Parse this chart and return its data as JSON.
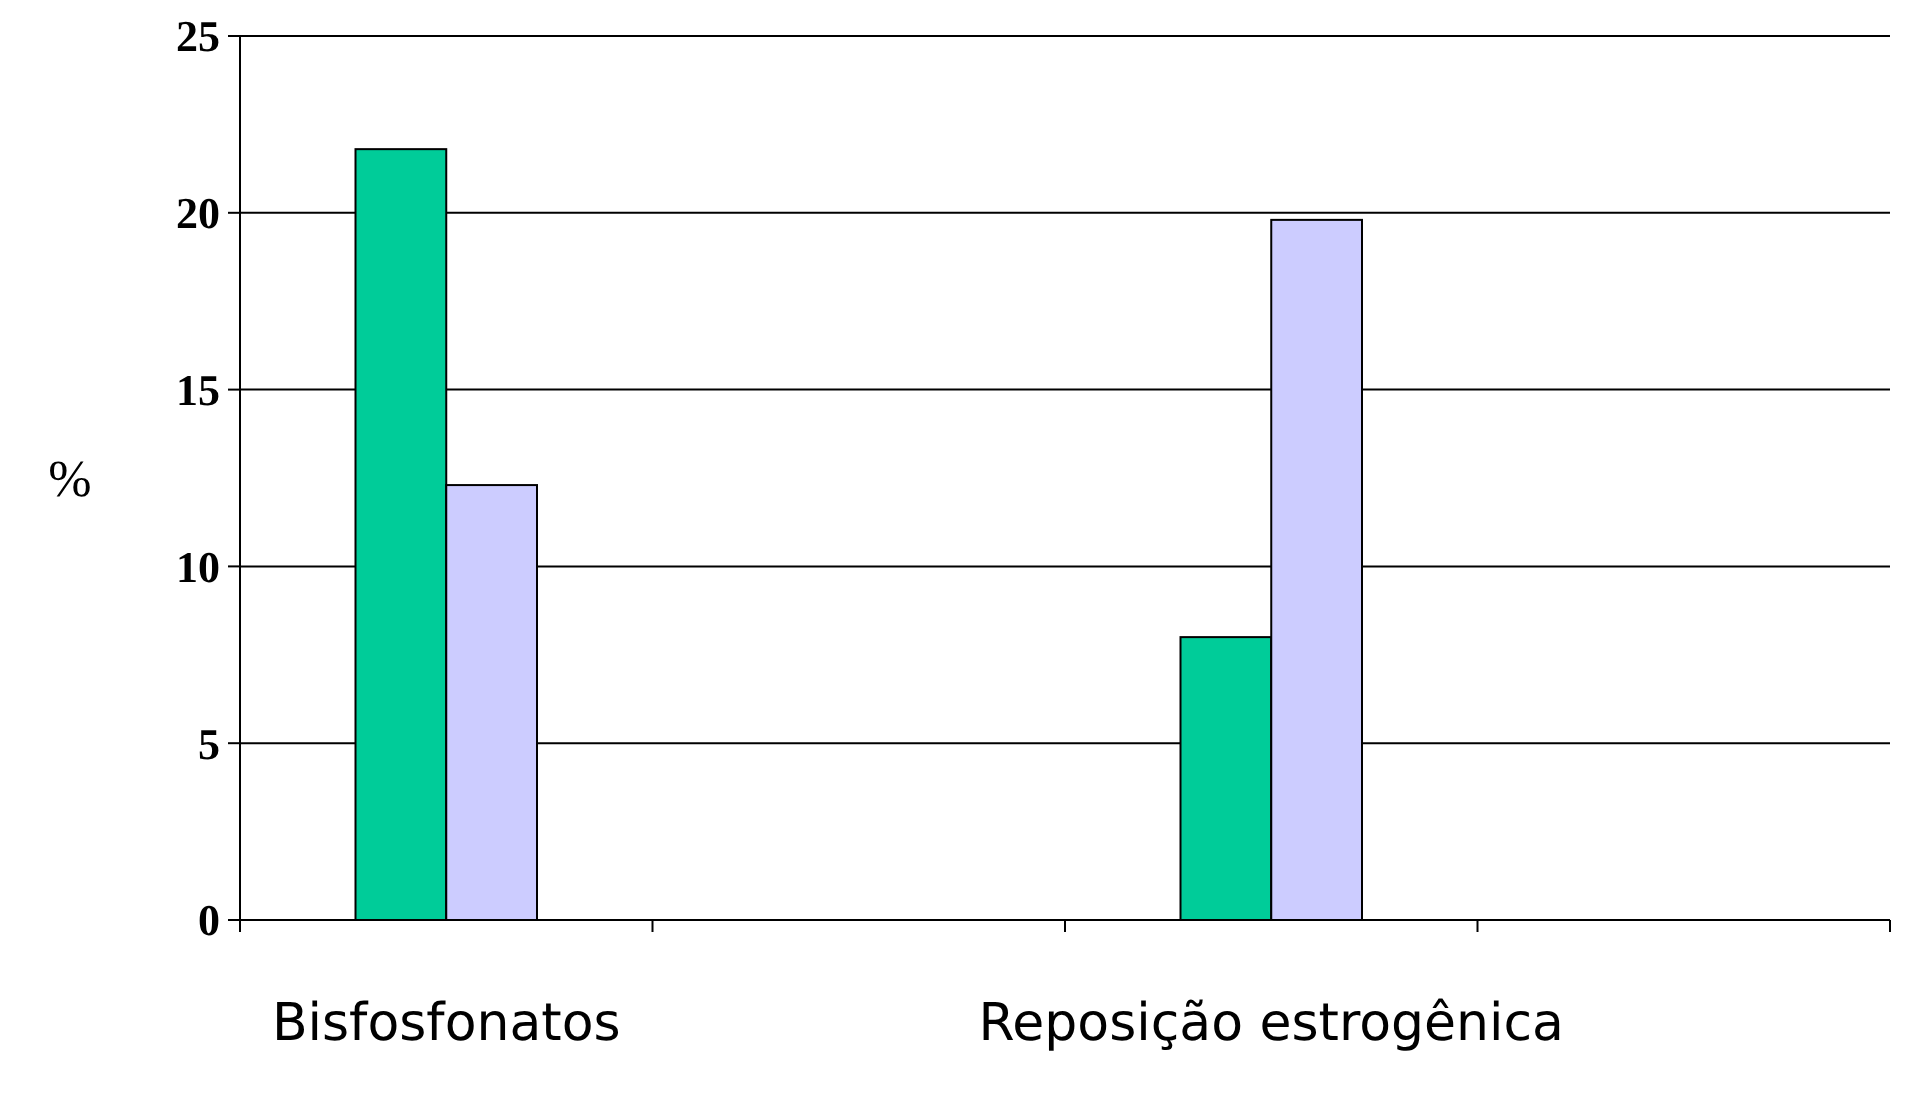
{
  "chart_data": {
    "type": "bar",
    "ylabel": "%",
    "categories": [
      "Bisfosfonatos",
      null,
      "Reposição estrogênica",
      null
    ],
    "series": [
      {
        "color": "#00cc99",
        "values": [
          21.8,
          null,
          8,
          null
        ]
      },
      {
        "color": "#ccccff",
        "values": [
          12.3,
          null,
          19.8,
          null
        ]
      }
    ],
    "ylim": [
      0,
      25
    ],
    "yticks": [
      0,
      5,
      10,
      15,
      20,
      25
    ],
    "grid": "y"
  }
}
